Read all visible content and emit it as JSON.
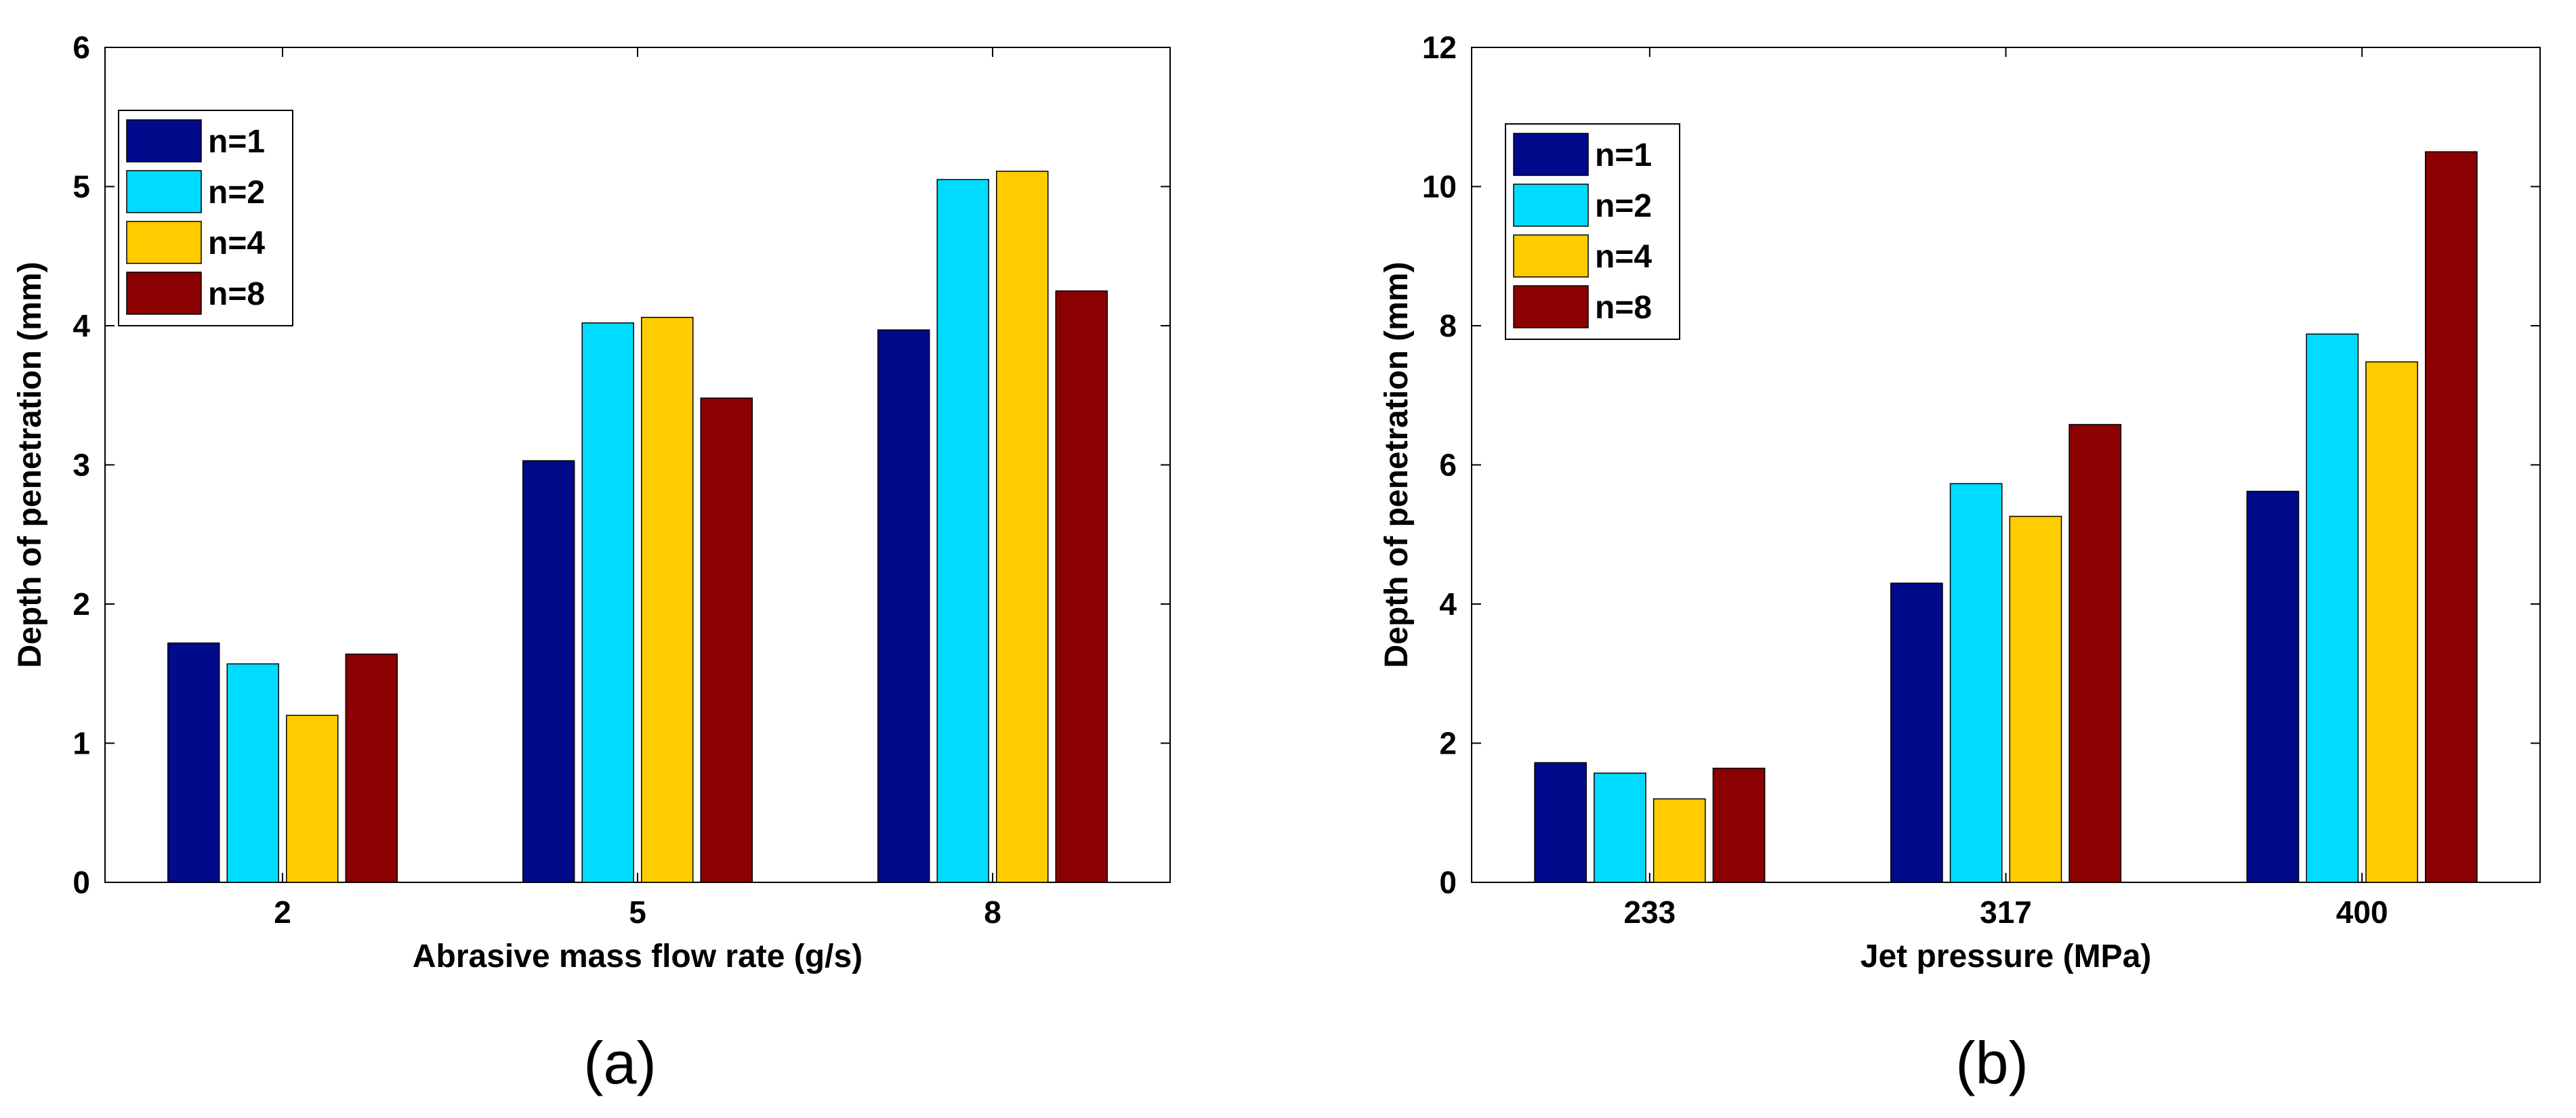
{
  "chart_data": [
    {
      "type": "bar",
      "panel": "(a)",
      "title": "",
      "xlabel": "Abrasive mass flow rate (g/s)",
      "ylabel": "Depth of penetration (mm)",
      "categories": [
        "2",
        "5",
        "8"
      ],
      "ylim": [
        0,
        6
      ],
      "yticks": [
        0,
        1,
        2,
        3,
        4,
        5,
        6
      ],
      "legend_position": "top-left",
      "series": [
        {
          "name": "n=1",
          "color": "#000a8a",
          "values": [
            1.72,
            3.03,
            3.97
          ]
        },
        {
          "name": "n=2",
          "color": "#00dcff",
          "values": [
            1.57,
            4.02,
            5.05
          ]
        },
        {
          "name": "n=4",
          "color": "#ffcc00",
          "values": [
            1.2,
            4.06,
            5.11
          ]
        },
        {
          "name": "n=8",
          "color": "#8b0000",
          "values": [
            1.64,
            3.48,
            4.25
          ]
        }
      ]
    },
    {
      "type": "bar",
      "panel": "(b)",
      "title": "",
      "xlabel": "Jet pressure (MPa)",
      "ylabel": "Depth of penetration (mm)",
      "categories": [
        "233",
        "317",
        "400"
      ],
      "ylim": [
        0,
        12
      ],
      "yticks": [
        0,
        2,
        4,
        6,
        8,
        10,
        12
      ],
      "legend_position": "top-left",
      "series": [
        {
          "name": "n=1",
          "color": "#000a8a",
          "values": [
            1.72,
            4.3,
            5.62
          ]
        },
        {
          "name": "n=2",
          "color": "#00dcff",
          "values": [
            1.57,
            5.73,
            7.88
          ]
        },
        {
          "name": "n=4",
          "color": "#ffcc00",
          "values": [
            1.2,
            5.26,
            7.48
          ]
        },
        {
          "name": "n=8",
          "color": "#8b0000",
          "values": [
            1.64,
            6.58,
            10.5
          ]
        }
      ]
    }
  ]
}
